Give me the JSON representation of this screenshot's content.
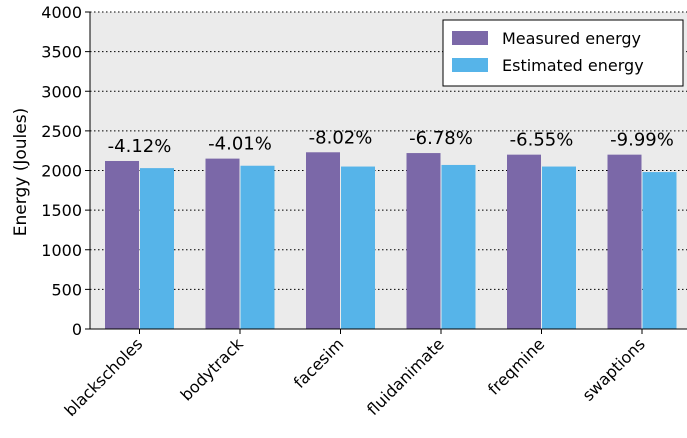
{
  "chart_data": {
    "type": "bar",
    "title": "",
    "xlabel": "",
    "ylabel": "Energy (Joules)",
    "ylim": [
      0,
      4000
    ],
    "yticks": [
      0,
      500,
      1000,
      1500,
      2000,
      2500,
      3000,
      3500,
      4000
    ],
    "grid": "y-dotted",
    "legend_position": "top-right",
    "categories": [
      "blackscholes",
      "bodytrack",
      "facesim",
      "fluidanimate",
      "freqmine",
      "swaptions"
    ],
    "series": [
      {
        "name": "Measured energy",
        "color": "#7b68a8",
        "values": [
          2120,
          2150,
          2230,
          2220,
          2200,
          2200
        ]
      },
      {
        "name": "Estimated energy",
        "color": "#56b4e9",
        "values": [
          2030,
          2060,
          2050,
          2070,
          2050,
          1980
        ]
      }
    ],
    "data_labels": [
      "-4.12%",
      "-4.01%",
      "-8.02%",
      "-6.78%",
      "-6.55%",
      "-9.99%"
    ],
    "plot_background": "#ebebeb"
  }
}
